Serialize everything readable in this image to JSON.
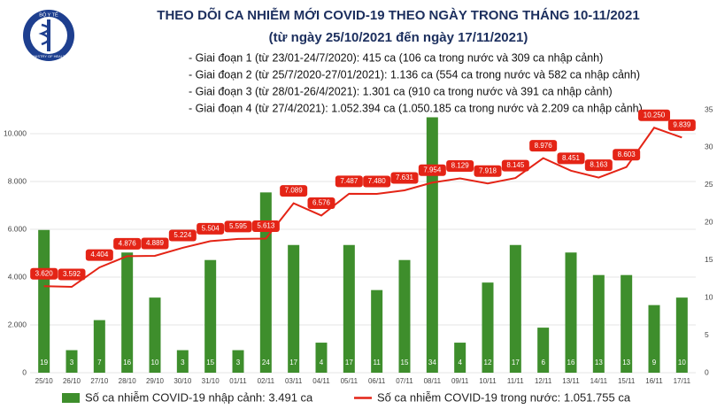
{
  "logo": [
    "BỘ Y TẾ",
    "MINISTRY OF HEALTH"
  ],
  "chart_data": {
    "type": "bar-line",
    "title": "THEO DÕI CA NHIỄM MỚI COVID-19 THEO NGÀY TRONG THÁNG 10-11/2021",
    "subtitle": "(từ ngày 25/10/2021 đến ngày 17/11/2021)",
    "annotations": [
      "- Giai đoạn 1 (từ 23/01-24/7/2020): 415 ca (106 ca trong nước và 309 ca nhập cảnh)",
      "- Giai đoạn 2 (từ 25/7/2020-27/01/2021): 1.136 ca (554 ca trong nước và 582 ca nhập cảnh)",
      "- Giai đoạn 3 (từ 28/01-26/4/2021): 1.301 ca (910 ca trong nước và 391 ca nhập cảnh)",
      "- Giai đoạn 4 (từ 27/4/2021): 1.052.394 ca (1.050.185 ca trong nước và 2.209 ca nhập cảnh)"
    ],
    "categories": [
      "25/10",
      "26/10",
      "27/10",
      "28/10",
      "29/10",
      "30/10",
      "31/10",
      "01/11",
      "02/11",
      "03/11",
      "04/11",
      "05/11",
      "06/11",
      "07/11",
      "08/11",
      "09/11",
      "10/11",
      "11/11",
      "12/11",
      "13/11",
      "14/11",
      "15/11",
      "16/11",
      "17/11"
    ],
    "series": [
      {
        "name": "Số ca nhiễm COVID-19 nhập cảnh: 3.491 ca",
        "type": "bar",
        "axis": "y2",
        "color": "#3e8e2c",
        "values": [
          19,
          3,
          7,
          16,
          10,
          3,
          15,
          3,
          24,
          17,
          4,
          17,
          11,
          15,
          34,
          4,
          12,
          17,
          6,
          16,
          13,
          13,
          9,
          10
        ]
      },
      {
        "name": "Số ca nhiễm COVID-19 trong nước: 1.051.755 ca",
        "type": "line",
        "axis": "y",
        "color": "#e42416",
        "values": [
          3620,
          3592,
          4404,
          4876,
          4889,
          5224,
          5504,
          5595,
          5613,
          7089,
          6576,
          7487,
          7480,
          7631,
          7954,
          8129,
          7918,
          8145,
          8976,
          8451,
          8163,
          8603,
          10250,
          9839
        ],
        "value_labels": [
          "3.620",
          "3.592",
          "4.404",
          "4.876",
          "4.889",
          "5.224",
          "5.504",
          "5.595",
          "5.613",
          "7.089",
          "6.576",
          "7.487",
          "7.480",
          "7.631",
          "7.954",
          "8.129",
          "7.918",
          "8.145",
          "8.976",
          "8.451",
          "8.163",
          "8.603",
          "10.250",
          "9.839"
        ]
      }
    ],
    "ylim": [
      0,
      11000
    ],
    "yticks": [
      0,
      {
        "value": 2000,
        "label": "2.000"
      },
      {
        "value": 4000,
        "label": "4.000"
      },
      {
        "value": 6000,
        "label": "6.000"
      },
      {
        "value": 8000,
        "label": "8.000"
      },
      {
        "value": 10000,
        "label": "10.000"
      }
    ],
    "y2lim": [
      0,
      35
    ],
    "y2ticks": [
      0,
      5,
      10,
      15,
      20,
      25,
      30,
      35
    ],
    "grid": true
  }
}
